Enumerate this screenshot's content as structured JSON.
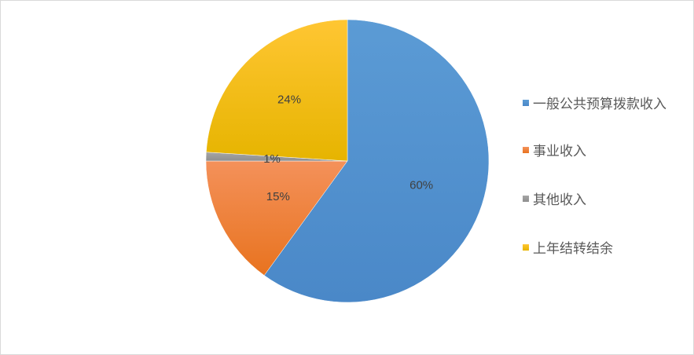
{
  "chart_data": {
    "type": "pie",
    "start_angle": "12 o'clock",
    "direction": "clockwise",
    "legend_position": "right",
    "slices": [
      {
        "label": "一般公共预算拨款收入",
        "value": 60,
        "data_label": "60%",
        "color": "#5b9bd5",
        "color_dark": "#4a88c8"
      },
      {
        "label": "事业收入",
        "value": 15,
        "data_label": "15%",
        "color": "#f4915a",
        "color_dark": "#e8731f"
      },
      {
        "label": "其他收入",
        "value": 1,
        "data_label": "1%",
        "color": "#a5a5a5",
        "color_dark": "#8f8f8f"
      },
      {
        "label": "上年结转结余",
        "value": 24,
        "data_label": "24%",
        "color": "#ffc633",
        "color_dark": "#e6b400"
      }
    ]
  }
}
